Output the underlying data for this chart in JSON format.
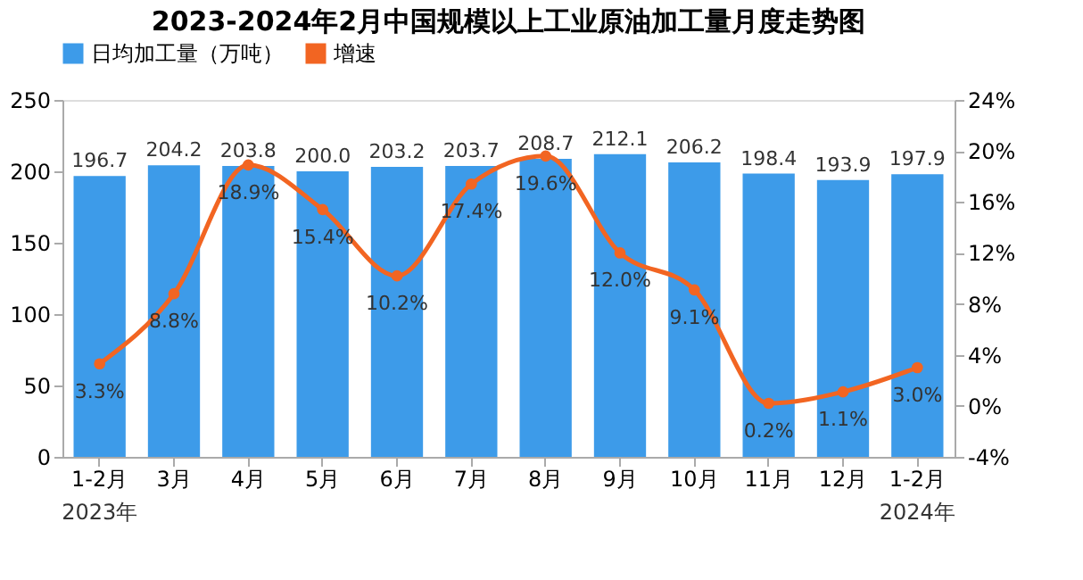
{
  "chart_data": {
    "type": "bar",
    "title": "2023-2024年2月中国规模以上工业原油加工量月度走势图",
    "categories": [
      "1-2月",
      "3月",
      "4月",
      "5月",
      "6月",
      "7月",
      "8月",
      "9月",
      "10月",
      "11月",
      "12月",
      "1-2月"
    ],
    "series": [
      {
        "name": "日均加工量（万吨）",
        "color": "#3d9be9",
        "values": [
          196.7,
          204.2,
          203.8,
          200.0,
          203.2,
          203.7,
          208.7,
          212.1,
          206.2,
          198.4,
          193.9,
          197.9
        ],
        "value_labels": [
          "196.7",
          "204.2",
          "203.8",
          "200.0",
          "203.2",
          "203.7",
          "208.7",
          "212.1",
          "206.2",
          "198.4",
          "193.9",
          "197.9"
        ]
      },
      {
        "name": "增速",
        "type": "line",
        "axis": "y2",
        "color": "#f26522",
        "marker": "circle",
        "line_style": "solid",
        "values": [
          3.3,
          8.8,
          18.9,
          15.4,
          10.2,
          17.4,
          19.6,
          12.0,
          9.1,
          0.2,
          1.1,
          3.0
        ],
        "value_labels": [
          "3.3%",
          "8.8%",
          "18.9%",
          "15.4%",
          "10.2%",
          "17.4%",
          "19.6%",
          "12.0%",
          "9.1%",
          "0.2%",
          "1.1%",
          "3.0%"
        ]
      }
    ],
    "ylim": [
      0,
      250
    ],
    "yticks": [
      0,
      50,
      100,
      150,
      200,
      250
    ],
    "y2lim": [
      -4,
      24
    ],
    "y2ticks": [
      {
        "value": -4,
        "label": "-4%"
      },
      {
        "value": 0,
        "label": "0%"
      },
      {
        "value": 4,
        "label": "4%"
      },
      {
        "value": 8,
        "label": "8%"
      },
      {
        "value": 12,
        "label": "12%"
      },
      {
        "value": 16,
        "label": "16%"
      },
      {
        "value": 20,
        "label": "20%"
      },
      {
        "value": 24,
        "label": "24%"
      }
    ],
    "annotations": [
      "2023年",
      "2024年"
    ],
    "legend": "top",
    "grid": false
  }
}
